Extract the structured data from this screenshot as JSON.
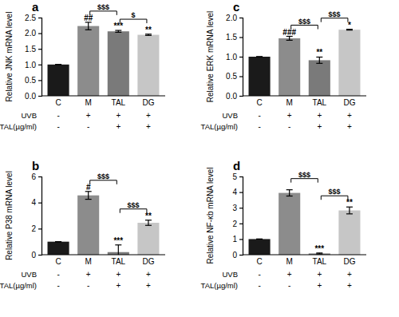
{
  "chart_data": [
    {
      "type": "bar",
      "panel": "a",
      "y_label": "Relative JNK mRNA level",
      "categories": [
        "C",
        "M",
        "TAL",
        "DG"
      ],
      "values": [
        1.0,
        2.23,
        2.06,
        1.95
      ],
      "errors": [
        0,
        0.12,
        0.03,
        0.02
      ],
      "colors": [
        "#1a1a1a",
        "#8c8c8c",
        "#7a7a7a",
        "#c6c6c6"
      ],
      "ylim": [
        0,
        2.5
      ],
      "yticks": [
        {
          "value": 0,
          "label": "0.0"
        },
        {
          "value": 0.5,
          "label": "0.5"
        },
        {
          "value": 1,
          "label": "1.0"
        },
        {
          "value": 1.5,
          "label": "1.5"
        },
        {
          "value": 2,
          "label": "2.0"
        },
        {
          "value": 2.5,
          "label": "2.5"
        }
      ],
      "significance": [
        null,
        "##",
        "***",
        "**"
      ],
      "comparisons": [
        {
          "from": "M",
          "to": "TAL",
          "label": "$$$"
        },
        {
          "from": "TAL",
          "to": "DG",
          "label": "$"
        }
      ],
      "conditions": [
        {
          "name": "UVB",
          "values": [
            "-",
            "+",
            "+",
            "+"
          ]
        },
        {
          "name": "TAL(µg/ml)",
          "values": [
            "-",
            "-",
            "+",
            "+"
          ]
        }
      ]
    },
    {
      "type": "bar",
      "panel": "b",
      "y_label": "Relative P38 mRNA level",
      "categories": [
        "C",
        "M",
        "TAL",
        "DG"
      ],
      "values": [
        1.0,
        4.55,
        0.2,
        2.45
      ],
      "errors": [
        0,
        0.3,
        0.55,
        0.2
      ],
      "colors": [
        "#1a1a1a",
        "#8c8c8c",
        "#7a7a7a",
        "#c6c6c6"
      ],
      "ylim": [
        0,
        6
      ],
      "yticks": [
        0,
        2,
        4,
        6
      ],
      "significance": [
        null,
        "#",
        "***",
        "**"
      ],
      "comparisons": [
        {
          "from": "M",
          "to": "TAL",
          "label": "$$$"
        },
        {
          "from": "TAL",
          "to": "DG",
          "label": "$$$"
        }
      ],
      "conditions": [
        {
          "name": "UVB",
          "values": [
            "-",
            "+",
            "+",
            "+"
          ]
        },
        {
          "name": "TAL(µg/ml)",
          "values": [
            "-",
            "-",
            "+",
            "+"
          ]
        }
      ]
    },
    {
      "type": "bar",
      "panel": "c",
      "y_label": "Relative ERK mRNA level",
      "categories": [
        "C",
        "M",
        "TAL",
        "DG"
      ],
      "values": [
        1.0,
        1.47,
        0.91,
        1.69
      ],
      "errors": [
        0,
        0.05,
        0.08,
        0.01
      ],
      "colors": [
        "#1a1a1a",
        "#8c8c8c",
        "#7a7a7a",
        "#c6c6c6"
      ],
      "ylim": [
        0,
        2
      ],
      "yticks": [
        {
          "value": 0,
          "label": "0.0"
        },
        {
          "value": 0.5,
          "label": "0.5"
        },
        {
          "value": 1,
          "label": "1.0"
        },
        {
          "value": 1.5,
          "label": "1.5"
        },
        {
          "value": 2,
          "label": "2.0"
        }
      ],
      "significance": [
        null,
        "###",
        "**",
        "*"
      ],
      "comparisons": [
        {
          "from": "M",
          "to": "TAL",
          "label": "$$$"
        },
        {
          "from": "TAL",
          "to": "DG",
          "label": "$$$"
        }
      ],
      "conditions": [
        {
          "name": "UVB",
          "values": [
            "-",
            "+",
            "+",
            "+"
          ]
        },
        {
          "name": "TAL(µg/ml)",
          "values": [
            "-",
            "-",
            "+",
            "+"
          ]
        }
      ]
    },
    {
      "type": "bar",
      "panel": "d",
      "y_label": "Relative NF-κb mRNA level",
      "categories": [
        "C",
        "M",
        "TAL",
        "DG"
      ],
      "values": [
        1.0,
        3.95,
        0.08,
        2.83
      ],
      "errors": [
        0,
        0.2,
        0.03,
        0.22
      ],
      "colors": [
        "#1a1a1a",
        "#8c8c8c",
        "#7a7a7a",
        "#c6c6c6"
      ],
      "ylim": [
        0,
        5
      ],
      "yticks": [
        0,
        1,
        2,
        3,
        4,
        5
      ],
      "significance": [
        null,
        null,
        "***",
        "**"
      ],
      "comparisons": [
        {
          "from": "M",
          "to": "TAL",
          "label": "$$$"
        },
        {
          "from": "TAL",
          "to": "DG",
          "label": "$$$"
        }
      ],
      "conditions": [
        {
          "name": "UVB",
          "values": [
            "-",
            "+",
            "+",
            "+"
          ]
        },
        {
          "name": "TAL(µg/ml)",
          "values": [
            "-",
            "-",
            "+",
            "+"
          ]
        }
      ]
    }
  ]
}
